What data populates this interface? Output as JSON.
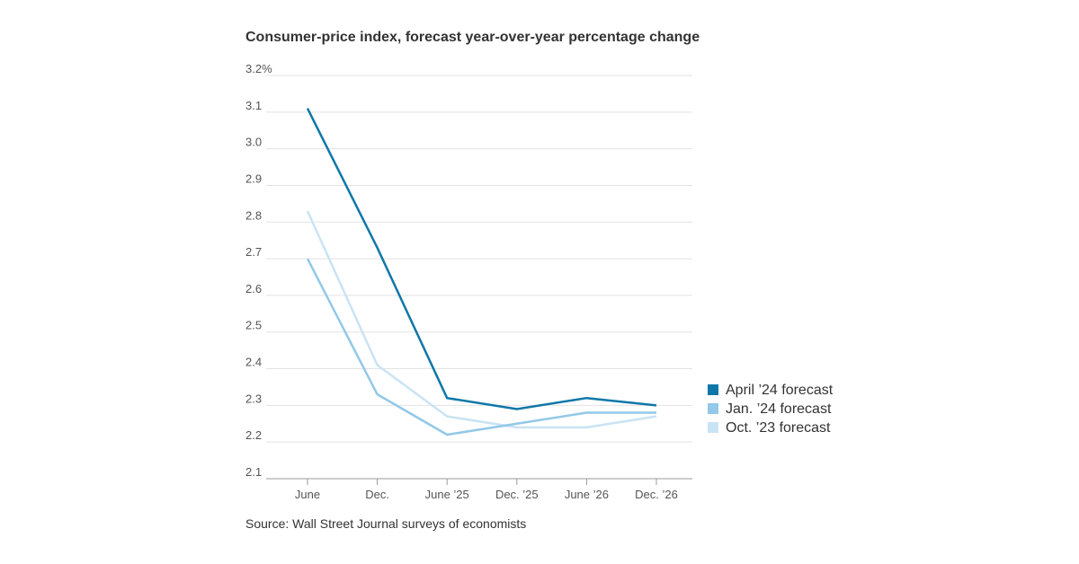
{
  "chart_data": {
    "type": "line",
    "title": "Consumer-price index, forecast year-over-year percentage change",
    "source": "Source: Wall Street Journal surveys of economists",
    "categories": [
      "June",
      "Dec.",
      "June ’25",
      "Dec. ’25",
      "June ’26",
      "Dec. ’26"
    ],
    "series": [
      {
        "name": "April ’24 forecast",
        "color": "#0f77a8",
        "values": [
          3.11,
          2.73,
          2.32,
          2.29,
          2.32,
          2.3
        ]
      },
      {
        "name": "Jan. ’24 forecast",
        "color": "#92c8e8",
        "values": [
          2.7,
          2.33,
          2.22,
          2.25,
          2.28,
          2.28
        ]
      },
      {
        "name": "Oct. ’23 forecast",
        "color": "#c9e3f4",
        "values": [
          2.83,
          2.41,
          2.27,
          2.24,
          2.24,
          2.27
        ]
      }
    ],
    "ylim": [
      2.1,
      3.2
    ],
    "yticks": [
      2.1,
      2.2,
      2.3,
      2.4,
      2.5,
      2.6,
      2.7,
      2.8,
      2.9,
      {
        "value": 3,
        "label": "3.0"
      },
      3.1,
      {
        "value": 3.2,
        "label": "3.2%"
      }
    ],
    "grid": true
  }
}
